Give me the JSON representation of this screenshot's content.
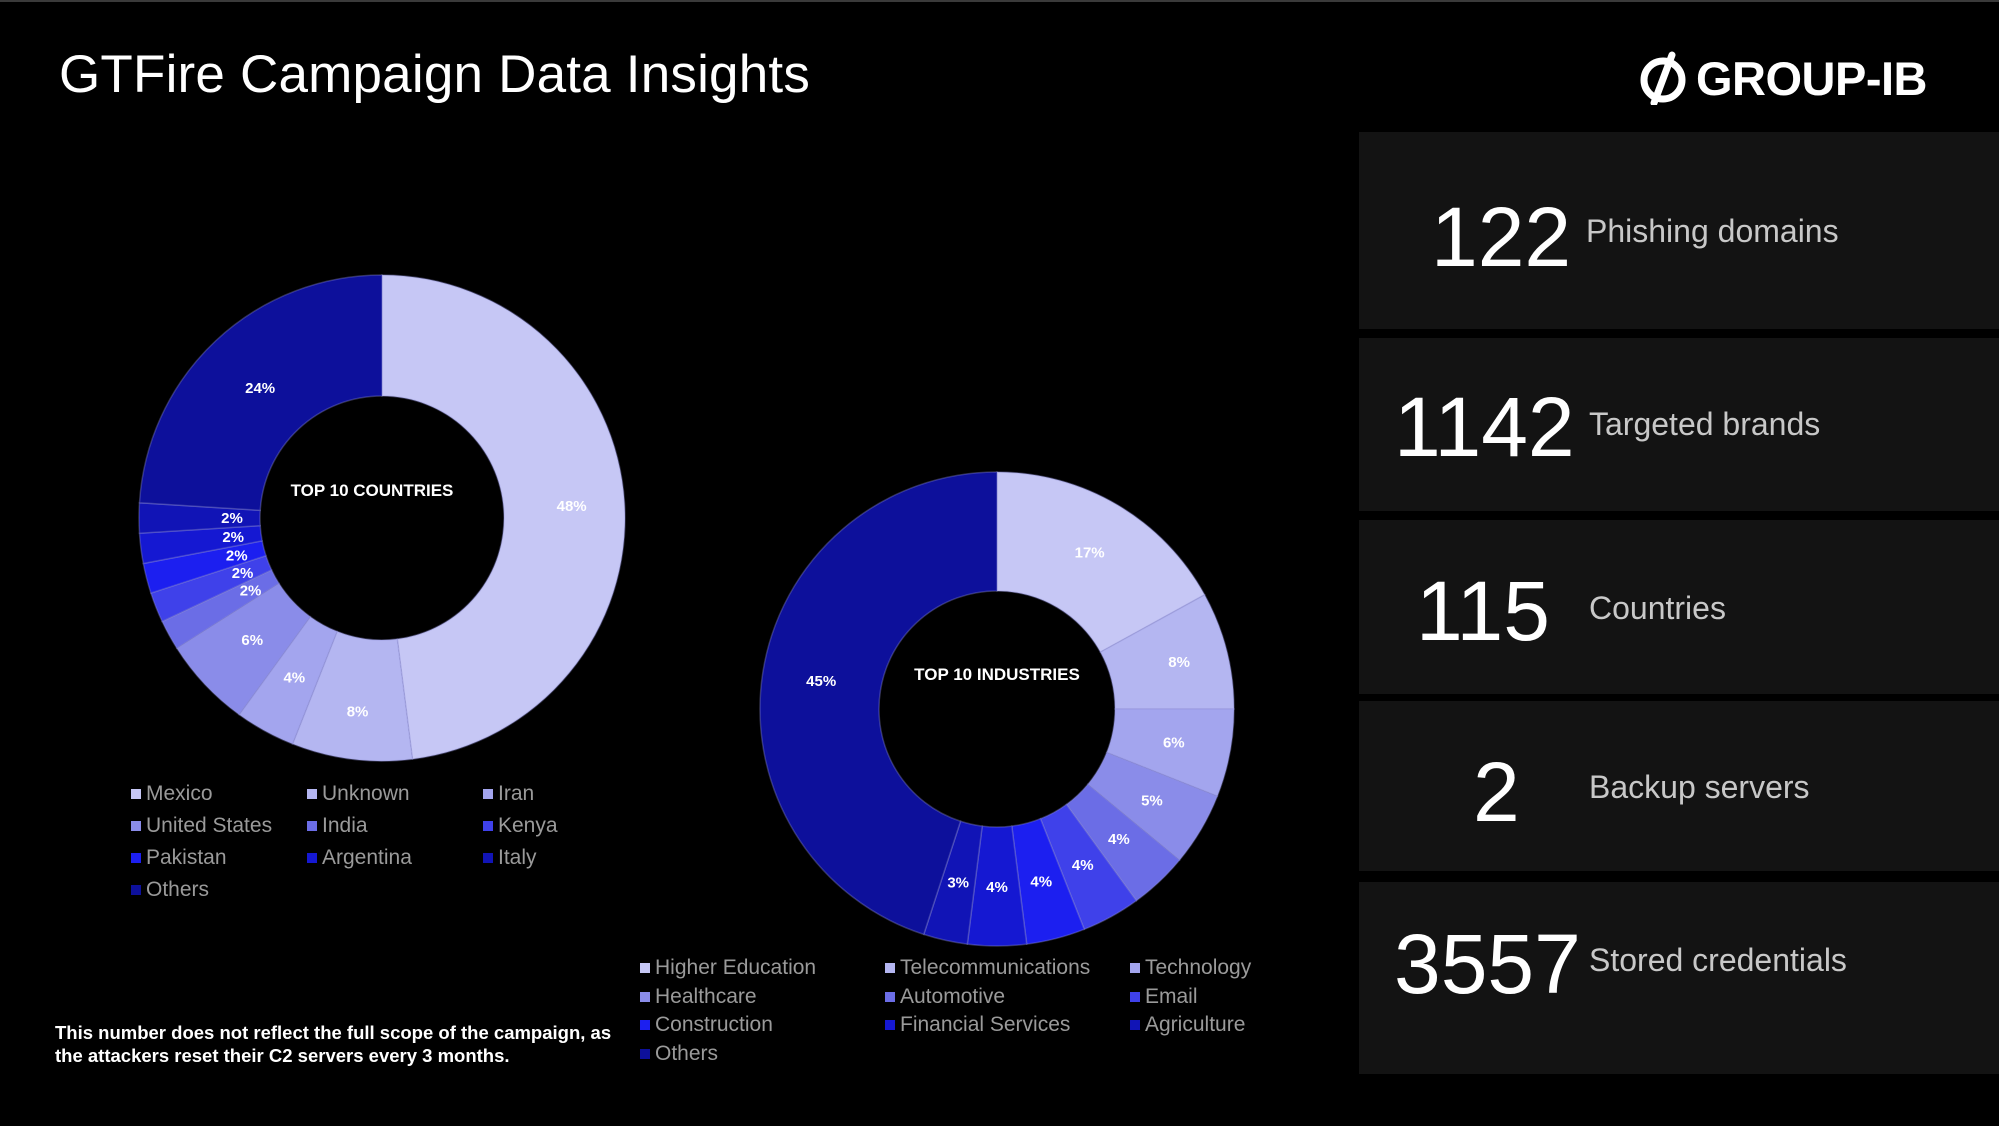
{
  "header": {
    "title": "GTFire Campaign Data Insights",
    "logo_text": "GROUP-IB"
  },
  "colors": {
    "background": "#000000",
    "panel": "#131313"
  },
  "chart_data": [
    {
      "type": "pie",
      "variant": "donut",
      "center_label": "TOP 10 COUNTRIES",
      "categories": [
        "Mexico",
        "Unknown",
        "Iran",
        "United States",
        "India",
        "Kenya",
        "Pakistan",
        "Argentina",
        "Italy",
        "Others"
      ],
      "values": [
        48,
        8,
        4,
        6,
        2,
        2,
        2,
        2,
        2,
        24
      ],
      "labels": [
        "48%",
        "8%",
        "4%",
        "6%",
        "2%",
        "2%",
        "2%",
        "2%",
        "2%",
        "24%"
      ],
      "colors": [
        "#c6c7f5",
        "#b4b6f1",
        "#a3a5ee",
        "#8a8ce9",
        "#6b6de6",
        "#3f41ea",
        "#1c1ff0",
        "#1518d2",
        "#1114b6",
        "#0d109b"
      ],
      "legend": "bottom"
    },
    {
      "type": "pie",
      "variant": "donut",
      "center_label": "TOP 10 INDUSTRIES",
      "categories": [
        "Higher Education",
        "Telecommunications",
        "Technology",
        "Healthcare",
        "Automotive",
        "Email",
        "Construction",
        "Financial Services",
        "Agriculture",
        "Others"
      ],
      "values": [
        17,
        8,
        6,
        5,
        4,
        4,
        4,
        4,
        3,
        45
      ],
      "labels": [
        "17%",
        "8%",
        "6%",
        "5%",
        "4%",
        "4%",
        "4%",
        "4%",
        "3%",
        "45%"
      ],
      "colors": [
        "#c6c7f5",
        "#b4b6f1",
        "#a3a5ee",
        "#8a8ce9",
        "#6b6de6",
        "#3f41ea",
        "#1c1ff0",
        "#1518d2",
        "#1114b6",
        "#0d109b"
      ],
      "legend": "bottom"
    }
  ],
  "footnote": "This number does not reflect the full scope of the campaign, as the attackers reset their C2 servers every 3 months.",
  "stats": [
    {
      "number": "122",
      "label": "Phishing domains"
    },
    {
      "number": "1142",
      "label": "Targeted brands"
    },
    {
      "number": "115",
      "label": "Countries"
    },
    {
      "number": "2",
      "label": "Backup servers"
    },
    {
      "number": "3557",
      "label": "Stored credentials"
    }
  ]
}
